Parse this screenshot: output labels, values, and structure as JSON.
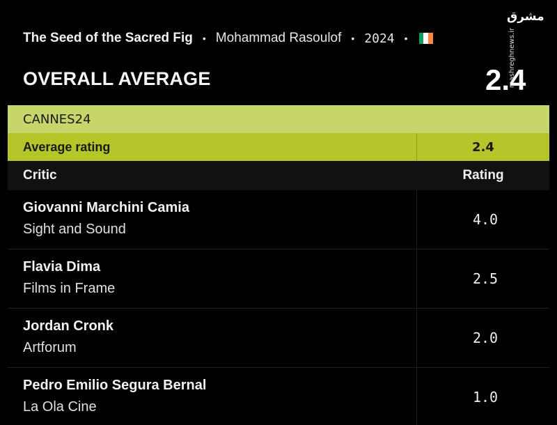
{
  "film": {
    "title": "The Seed of the Sacred Fig",
    "director": "Mohammad Rasoulof",
    "year": "2024",
    "separator": "•",
    "flag_icon": "ireland-flag-icon",
    "flag_colors": [
      "#169b62",
      "#ffffff",
      "#ff883e"
    ]
  },
  "overall": {
    "label": "OVERALL AVERAGE",
    "value": "2.4"
  },
  "watermark": {
    "logo": "مشرق",
    "url": "mashreghnews.ir"
  },
  "table": {
    "festival": "CANNES24",
    "average_label": "Average rating",
    "average_value": "2.4",
    "header_critic": "Critic",
    "header_rating": "Rating",
    "colors": {
      "festival_bg": "#c8d56a",
      "average_bg": "#b4c62a"
    },
    "rows": [
      {
        "name": "Giovanni Marchini Camia",
        "publication": "Sight and Sound",
        "rating": "4.0"
      },
      {
        "name": "Flavia Dima",
        "publication": "Films in Frame",
        "rating": "2.5"
      },
      {
        "name": "Jordan Cronk",
        "publication": "Artforum",
        "rating": "2.0"
      },
      {
        "name": "Pedro Emilio Segura Bernal",
        "publication": "La Ola Cine",
        "rating": "1.0"
      }
    ]
  }
}
